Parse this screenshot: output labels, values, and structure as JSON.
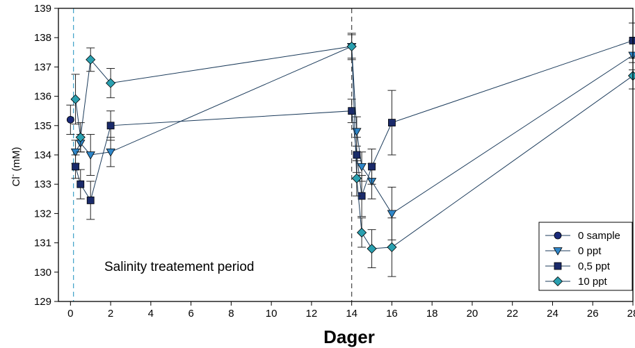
{
  "chart_data": {
    "type": "line",
    "xlabel": "Dager",
    "ylabel_main": "Cl",
    "ylabel_sup": "-",
    "ylabel_unit": " (mM)",
    "xlim": [
      -0.6,
      28
    ],
    "ylim": [
      129,
      139
    ],
    "xticks": [
      0,
      2,
      4,
      6,
      8,
      10,
      12,
      14,
      16,
      18,
      20,
      22,
      24,
      26,
      28
    ],
    "xtick_labels": [
      "0",
      "2",
      "4",
      "6",
      "8",
      "10",
      "12",
      "14",
      "16",
      "18",
      "20",
      "22",
      "24",
      "26",
      "28"
    ],
    "yticks": [
      129,
      130,
      131,
      132,
      133,
      134,
      135,
      136,
      137,
      138,
      139
    ],
    "ytick_labels": [
      "129",
      "130",
      "131",
      "132",
      "133",
      "134",
      "135",
      "136",
      "137",
      "138",
      "139"
    ],
    "reference_lines": [
      0.15,
      14.0
    ],
    "annotation": "Salinity treatement period",
    "legend_position": "bottom-right",
    "series": [
      {
        "name": "0 sample",
        "marker": "circle",
        "color": "#1a2a7a",
        "points": [
          {
            "x": 0,
            "y": 135.2,
            "err": 0.5
          }
        ]
      },
      {
        "name": "0 ppt",
        "marker": "triangle-down",
        "color": "#2f86c8",
        "points": [
          {
            "x": 0.25,
            "y": 134.1,
            "err": 0.4
          },
          {
            "x": 0.5,
            "y": 134.4,
            "err": 0.3
          },
          {
            "x": 1,
            "y": 134.0,
            "err": 0.7
          },
          {
            "x": 2,
            "y": 134.1,
            "err": 0.5
          },
          {
            "x": 14,
            "y": 137.7,
            "err": 0.4
          },
          {
            "x": 14.25,
            "y": 134.8,
            "err": 0.5
          },
          {
            "x": 14.5,
            "y": 133.6,
            "err": 0.5
          },
          {
            "x": 15,
            "y": 133.1,
            "err": 0.6
          },
          {
            "x": 16,
            "y": 132.0,
            "err": 0.9
          },
          {
            "x": 28,
            "y": 137.4,
            "err": 0.5
          }
        ]
      },
      {
        "name": "0,5 ppt",
        "marker": "square",
        "color": "#1a2a6a",
        "points": [
          {
            "x": 0.25,
            "y": 133.6,
            "err": 0.4
          },
          {
            "x": 0.5,
            "y": 133.0,
            "err": 0.5
          },
          {
            "x": 1,
            "y": 132.45,
            "err": 0.65
          },
          {
            "x": 2,
            "y": 135.0,
            "err": 0.5
          },
          {
            "x": 14,
            "y": 135.5,
            "err": 0.4
          },
          {
            "x": 14.25,
            "y": 134.0,
            "err": 0.6
          },
          {
            "x": 14.5,
            "y": 132.6,
            "err": 0.7
          },
          {
            "x": 15,
            "y": 133.6,
            "err": 0.6
          },
          {
            "x": 16,
            "y": 135.1,
            "err": 1.1
          },
          {
            "x": 28,
            "y": 137.9,
            "err": 0.6
          }
        ]
      },
      {
        "name": "10 ppt",
        "marker": "diamond",
        "color": "#2aa0b0",
        "points": [
          {
            "x": 0.25,
            "y": 135.9,
            "err": 0.85
          },
          {
            "x": 0.5,
            "y": 134.6,
            "err": 0.5
          },
          {
            "x": 1,
            "y": 137.25,
            "err": 0.4
          },
          {
            "x": 2,
            "y": 136.45,
            "err": 0.5
          },
          {
            "x": 14,
            "y": 137.7,
            "err": 0.45
          },
          {
            "x": 14.25,
            "y": 133.2,
            "err": 0.6
          },
          {
            "x": 14.5,
            "y": 131.35,
            "err": 0.5
          },
          {
            "x": 15,
            "y": 130.8,
            "err": 0.65
          },
          {
            "x": 16,
            "y": 130.85,
            "err": 1.0
          },
          {
            "x": 28,
            "y": 136.7,
            "err": 0.45
          }
        ]
      }
    ]
  }
}
